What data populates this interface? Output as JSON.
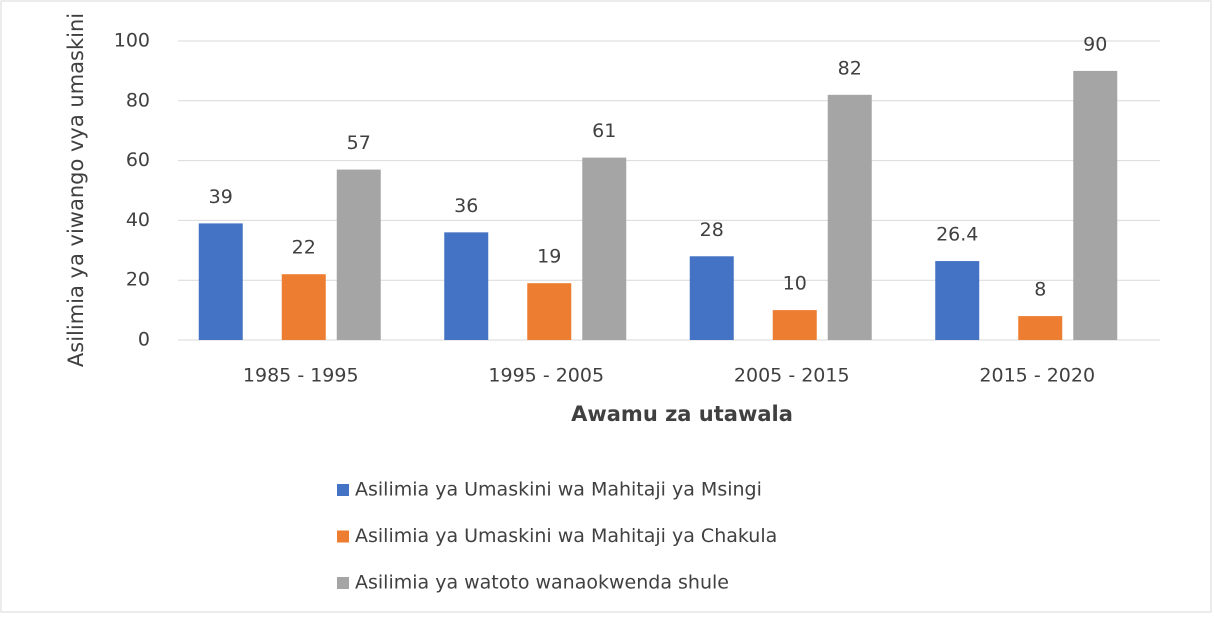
{
  "chart_data": {
    "type": "bar",
    "categories": [
      "1985 - 1995",
      "1995 - 2005",
      "2005 - 2015",
      "2015 - 2020"
    ],
    "series": [
      {
        "name": "Asilimia ya Umaskini wa Mahitaji ya Msingi",
        "color": "#4472c4",
        "values": [
          39,
          36,
          28,
          26.4
        ]
      },
      {
        "name": "Asilimia ya Umaskini wa Mahitaji ya  Chakula",
        "color": "#ed7d31",
        "values": [
          22,
          19,
          10,
          8
        ]
      },
      {
        "name": "Asilimia ya watoto wanaokwenda shule",
        "color": "#a5a5a5",
        "values": [
          57,
          61,
          82,
          90
        ]
      }
    ],
    "x_label": "Awamu za utawala",
    "y_label": "Asilimia ya viwango vya umaskini",
    "ylim": [
      0,
      100
    ],
    "yticks": [
      0,
      20,
      40,
      60,
      80,
      100
    ],
    "grid": true,
    "legend": "bottom"
  }
}
